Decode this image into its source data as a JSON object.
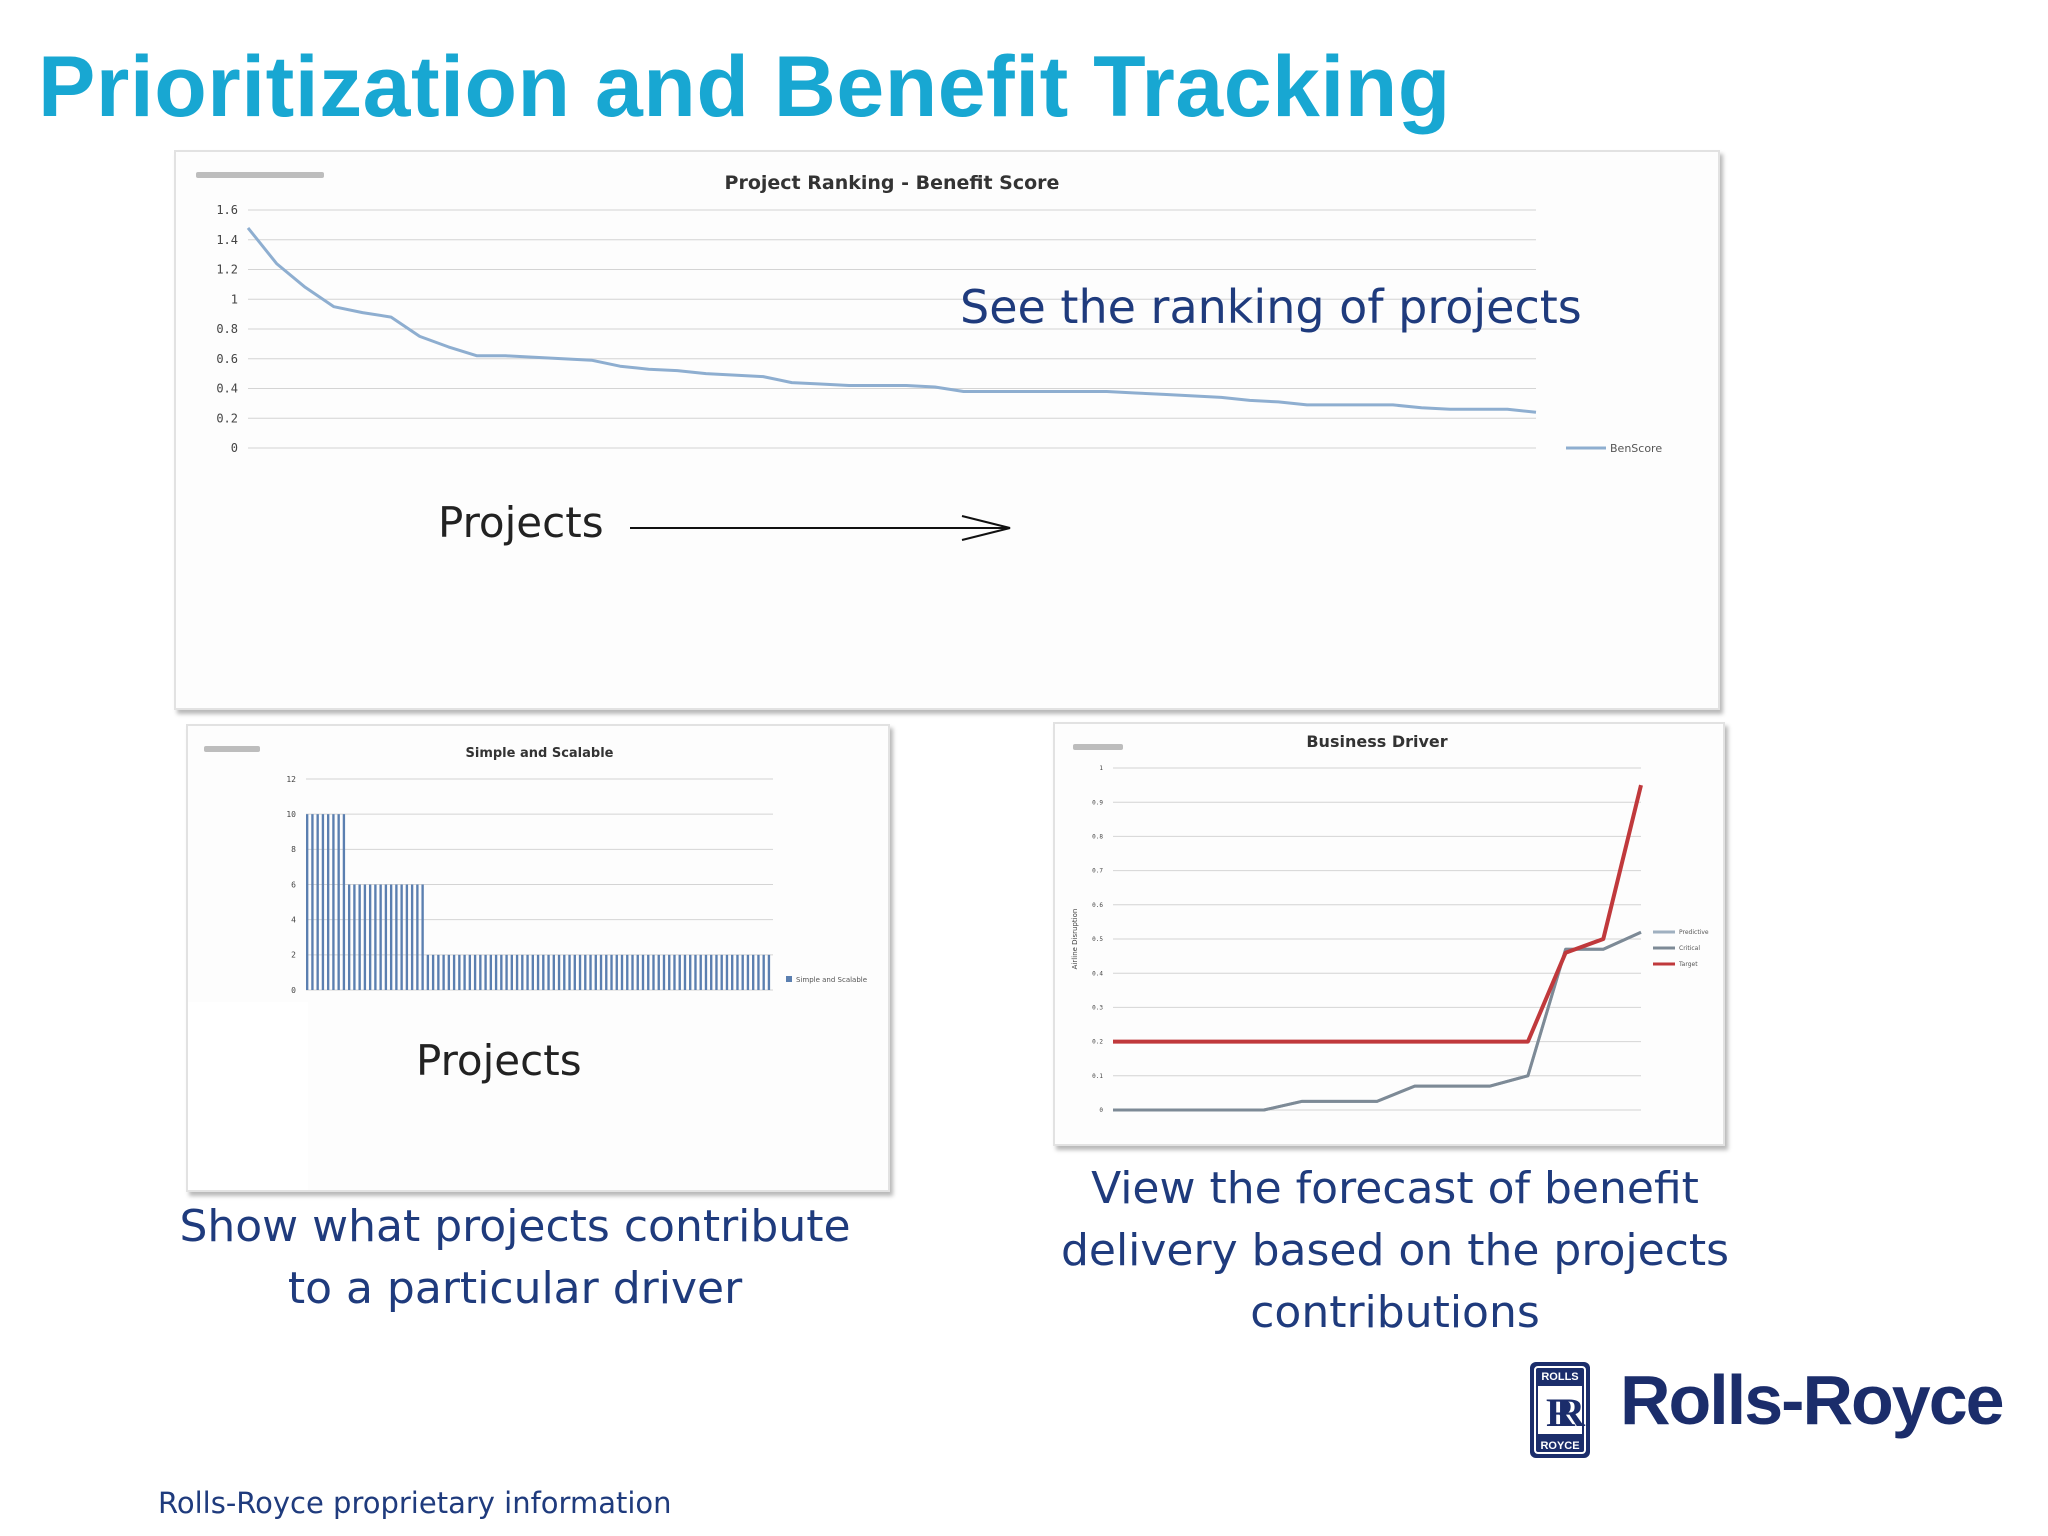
{
  "page": {
    "title": "Prioritization and Benefit Tracking",
    "footer": "Rolls-Royce proprietary information"
  },
  "captions": {
    "ranking": "See the ranking of projects",
    "simple": [
      "Show what projects contribute",
      "to a particular driver"
    ],
    "driver": [
      "View the forecast of benefit",
      "delivery based on the projects",
      "contributions"
    ]
  },
  "annotations": {
    "projects_top": "Projects",
    "projects_bottom": "Projects"
  },
  "logo": {
    "wordmark": "Rolls-Royce",
    "badge_top": "ROLLS",
    "badge_bottom": "ROYCE",
    "color": "#1b2d6b"
  },
  "colors": {
    "title": "#18a7d2",
    "caption": "#1f3b7d",
    "line_blue": "#8eaed0",
    "bar_blue": "#5b7fb0",
    "target_red": "#c0393c"
  },
  "chart_data": [
    {
      "type": "line",
      "title": "Project Ranking - Benefit Score",
      "xlabel": "",
      "ylabel": "",
      "ylim": [
        0,
        1.6
      ],
      "yticks": [
        "0",
        "0.2",
        "0.4",
        "0.6",
        "0.8",
        "1",
        "1.2",
        "1.4",
        "1.6"
      ],
      "grid": true,
      "legend": "right",
      "series": [
        {
          "name": "BenScore",
          "values": [
            1.48,
            1.24,
            1.08,
            0.95,
            0.91,
            0.88,
            0.75,
            0.68,
            0.62,
            0.62,
            0.61,
            0.6,
            0.59,
            0.55,
            0.53,
            0.52,
            0.5,
            0.49,
            0.48,
            0.44,
            0.43,
            0.42,
            0.42,
            0.42,
            0.41,
            0.38,
            0.38,
            0.38,
            0.38,
            0.38,
            0.38,
            0.37,
            0.36,
            0.35,
            0.34,
            0.32,
            0.31,
            0.29,
            0.29,
            0.29,
            0.29,
            0.27,
            0.26,
            0.26,
            0.26,
            0.24
          ]
        }
      ]
    },
    {
      "type": "bar",
      "title": "Simple and Scalable",
      "ylim": [
        0,
        12
      ],
      "yticks": [
        "0",
        "2",
        "4",
        "6",
        "8",
        "10",
        "12"
      ],
      "grid": true,
      "legend": "right",
      "series": [
        {
          "name": "Simple and Scalable",
          "values": [
            10,
            10,
            10,
            10,
            10,
            10,
            10,
            10,
            6,
            6,
            6,
            6,
            6,
            6,
            6,
            6,
            6,
            6,
            6,
            6,
            6,
            6,
            6,
            2,
            2,
            2,
            2,
            2,
            2,
            2,
            2,
            2,
            2,
            2,
            2,
            2,
            2,
            2,
            2,
            2,
            2,
            2,
            2,
            2,
            2,
            2,
            2,
            2,
            2,
            2,
            2,
            2,
            2,
            2,
            2,
            2,
            2,
            2,
            2,
            2,
            2,
            2,
            2,
            2,
            2,
            2,
            2,
            2,
            2,
            2,
            2,
            2,
            2,
            2,
            2,
            2,
            2,
            2,
            2,
            2,
            2,
            2,
            2,
            2,
            2,
            2,
            2,
            2,
            2
          ]
        }
      ]
    },
    {
      "type": "line",
      "title": "Business Driver",
      "ylabel": "Airline Disruption",
      "ylim": [
        0,
        1
      ],
      "yticks": [
        "0",
        "0.1",
        "0.2",
        "0.3",
        "0.4",
        "0.5",
        "0.6",
        "0.7",
        "0.8",
        "0.9",
        "1"
      ],
      "grid": true,
      "legend": "right",
      "series": [
        {
          "name": "Predictive",
          "values": [
            0,
            0,
            0,
            0,
            0,
            0.025,
            0.025,
            0.025,
            0.07,
            0.07,
            0.07,
            0.1,
            0.47,
            0.47,
            0.52
          ]
        },
        {
          "name": "Critical",
          "values": [
            0,
            0,
            0,
            0,
            0,
            0.025,
            0.025,
            0.025,
            0.07,
            0.07,
            0.07,
            0.1,
            0.47,
            0.47,
            0.52
          ]
        },
        {
          "name": "Target",
          "values": [
            0.2,
            0.2,
            0.2,
            0.2,
            0.2,
            0.2,
            0.2,
            0.2,
            0.2,
            0.2,
            0.2,
            0.2,
            0.46,
            0.5,
            0.95
          ]
        }
      ]
    }
  ]
}
